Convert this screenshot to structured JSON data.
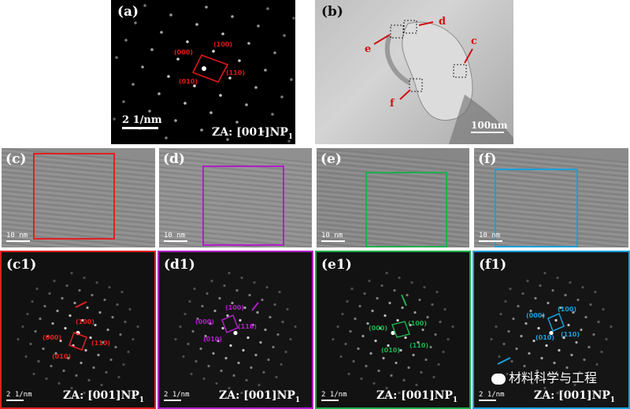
{
  "panels": {
    "a": {
      "label": "(a)",
      "scale": "2 1/nm",
      "za": "ZA: [001]NP",
      "za_sub": "1",
      "indices": [
        "(000)",
        "(100)",
        "(010)",
        "(110)"
      ],
      "color": "#e01818"
    },
    "b": {
      "label": "(b)",
      "scale": "100nm",
      "markers": [
        "c",
        "d",
        "e",
        "f"
      ]
    },
    "c": {
      "label": "(c)",
      "scale": "10 nm",
      "frame_color": "#e02020"
    },
    "d": {
      "label": "(d)",
      "scale": "10 nm",
      "frame_color": "#b01ec8"
    },
    "e": {
      "label": "(e)",
      "scale": "10 nm",
      "frame_color": "#1fae4c"
    },
    "f": {
      "label": "(f)",
      "scale": "10 nm",
      "frame_color": "#19a0dc"
    },
    "c1": {
      "label": "(c1)",
      "scale": "2 1/nm",
      "za": "ZA:  [001]NP",
      "za_sub": "1",
      "indices": [
        "(100)",
        "(000)",
        "(110)",
        "(010)"
      ],
      "color": "#e02020"
    },
    "d1": {
      "label": "(d1)",
      "scale": "2 1/nm",
      "za": "ZA:  [001]NP",
      "za_sub": "1",
      "indices": [
        "(100)",
        "(000)",
        "(110)",
        "(010)"
      ],
      "color": "#b01ec8"
    },
    "e1": {
      "label": "(e1)",
      "scale": "2 1/nm",
      "za": "ZA:  [001]NP",
      "za_sub": "1",
      "indices": [
        "(100)",
        "(000)",
        "(110)",
        "(010)"
      ],
      "color": "#1fae4c"
    },
    "f1": {
      "label": "(f1)",
      "scale": "2 1/nm",
      "za": "ZA:  [001]NP",
      "za_sub": "1",
      "indices": [
        "(100)",
        "(000)",
        "(110)",
        "(010)"
      ],
      "color": "#19a0dc"
    }
  },
  "watermark": "材料科学与工程"
}
